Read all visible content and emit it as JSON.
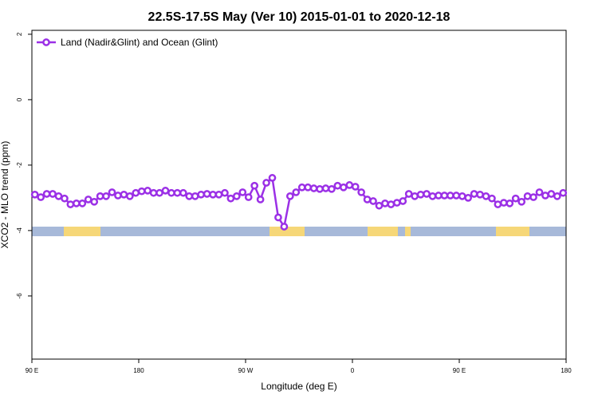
{
  "chart_data": {
    "type": "line",
    "title": "22.5S-17.5S May (Ver 10)   2015-01-01 to 2020-12-18",
    "x_label": "Longitude (deg E)",
    "y_label": "XCO2 - MLO trend (ppm)",
    "legend": "top-left",
    "xlim": [
      90,
      540
    ],
    "xticks": [
      {
        "value": 90,
        "label": "90 E"
      },
      180,
      {
        "value": 270,
        "label": "90 W"
      },
      {
        "value": 360,
        "label": "0"
      },
      {
        "value": 450,
        "label": "90 E"
      },
      {
        "value": 540,
        "label": "180"
      }
    ],
    "ylim": [
      -7.93,
      2.12
    ],
    "yticks": [
      -6,
      -4,
      -2,
      0,
      2
    ],
    "x": [
      92.5,
      97.5,
      102.5,
      107.5,
      112.5,
      117.5,
      122.5,
      127.5,
      132.5,
      137.5,
      142.5,
      147.5,
      152.5,
      157.5,
      162.5,
      167.5,
      172.5,
      177.5,
      182.5,
      187.5,
      192.5,
      197.5,
      202.5,
      207.5,
      212.5,
      217.5,
      222.5,
      227.5,
      232.5,
      237.5,
      242.5,
      247.5,
      252.5,
      257.5,
      262.5,
      267.5,
      272.5,
      277.5,
      282.5,
      287.5,
      292.5,
      297.5,
      302.5,
      307.5,
      312.5,
      317.5,
      322.5,
      327.5,
      332.5,
      337.5,
      342.5,
      347.5,
      352.5,
      357.5,
      362.5,
      367.5,
      372.5,
      377.5,
      382.5,
      387.5,
      392.5,
      397.5,
      402.5,
      407.5,
      412.5,
      417.5,
      422.5,
      427.5,
      432.5,
      437.5,
      442.5,
      447.5,
      452.5,
      457.5,
      462.5,
      467.5,
      472.5,
      477.5,
      482.5,
      487.5,
      492.5,
      497.5,
      502.5,
      507.5,
      512.5,
      517.5,
      522.5,
      527.5,
      532.5,
      537.5
    ],
    "series": [
      {
        "name": "Land (Nadir&Glint) and Ocean (Glint)",
        "color": "#9b30e6",
        "values": [
          -2.9,
          -2.98,
          -2.88,
          -2.88,
          -2.95,
          -3.02,
          -3.2,
          -3.17,
          -3.17,
          -3.05,
          -3.12,
          -2.95,
          -2.95,
          -2.83,
          -2.93,
          -2.9,
          -2.95,
          -2.85,
          -2.8,
          -2.78,
          -2.85,
          -2.85,
          -2.78,
          -2.85,
          -2.85,
          -2.85,
          -2.95,
          -2.95,
          -2.9,
          -2.88,
          -2.9,
          -2.9,
          -2.85,
          -3.02,
          -2.95,
          -2.83,
          -2.98,
          -2.63,
          -3.05,
          -2.54,
          -2.39,
          -3.6,
          -3.88,
          -2.95,
          -2.83,
          -2.68,
          -2.68,
          -2.71,
          -2.73,
          -2.71,
          -2.73,
          -2.63,
          -2.68,
          -2.61,
          -2.66,
          -2.83,
          -3.05,
          -3.1,
          -3.24,
          -3.17,
          -3.2,
          -3.15,
          -3.1,
          -2.88,
          -2.95,
          -2.9,
          -2.88,
          -2.95,
          -2.93,
          -2.93,
          -2.93,
          -2.93,
          -2.95,
          -3.0,
          -2.88,
          -2.9,
          -2.95,
          -3.02,
          -3.2,
          -3.15,
          -3.17,
          -3.02,
          -3.12,
          -2.95,
          -2.98,
          -2.83,
          -2.93,
          -2.88,
          -2.95,
          -2.85
        ]
      }
    ]
  }
}
